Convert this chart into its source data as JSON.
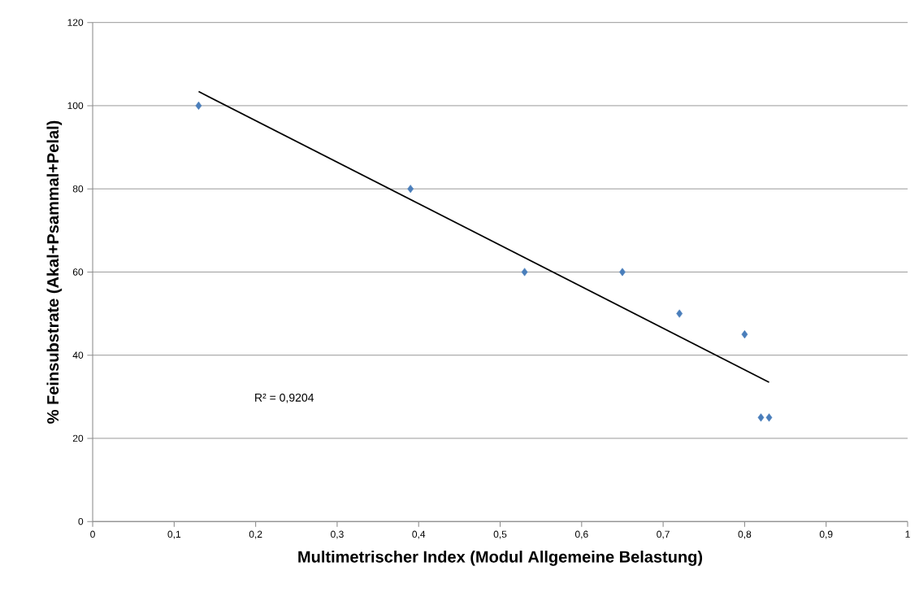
{
  "chart_data": {
    "type": "scatter",
    "xlabel": "Multimetrischer Index (Modul Allgemeine Belastung)",
    "ylabel": "% Feinsubstrate (Akal+Psammal+Pelal)",
    "annotations": [
      "R² = 0,9204"
    ],
    "xlim": [
      0,
      1
    ],
    "ylim": [
      0,
      120
    ],
    "xticks": [
      0,
      {
        "value": 0.1,
        "label": "0,1"
      },
      {
        "value": 0.2,
        "label": "0,2"
      },
      {
        "value": 0.3,
        "label": "0,3"
      },
      {
        "value": 0.4,
        "label": "0,4"
      },
      {
        "value": 0.5,
        "label": "0,5"
      },
      {
        "value": 0.6,
        "label": "0,6"
      },
      {
        "value": 0.7,
        "label": "0,7"
      },
      {
        "value": 0.8,
        "label": "0,8"
      },
      {
        "value": 0.9,
        "label": "0,9"
      },
      1
    ],
    "yticks": [
      0,
      20,
      40,
      60,
      80,
      100,
      120
    ],
    "grid": "y",
    "marker": "diamond",
    "series": [
      {
        "color": "#4a7ebb",
        "x": [
          0.13,
          0.39,
          0.53,
          0.65,
          0.72,
          0.8,
          0.82,
          0.83
        ],
        "values": [
          100,
          80,
          60,
          60,
          50,
          45,
          25,
          25
        ]
      },
      {
        "type": "line",
        "color": "#000000",
        "marker": "none",
        "x": [
          0.13,
          0.83
        ],
        "values": [
          103.4,
          33.5
        ]
      }
    ]
  }
}
